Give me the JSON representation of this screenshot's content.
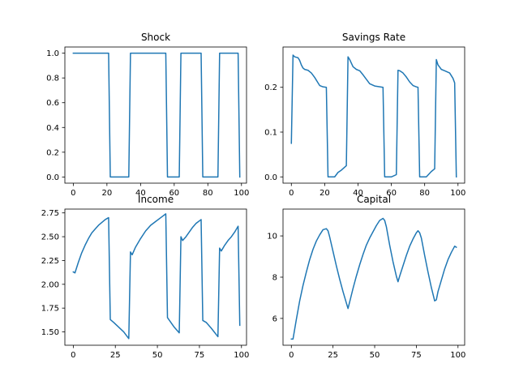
{
  "chart_data": [
    {
      "type": "line",
      "title": "Shock",
      "xlabel": "",
      "ylabel": "",
      "xlim": [
        -5,
        103
      ],
      "ylim": [
        -0.05,
        1.05
      ],
      "xticks": [
        0,
        20,
        40,
        60,
        80,
        100
      ],
      "yticks": [
        0.0,
        0.2,
        0.4,
        0.6,
        0.8,
        1.0
      ],
      "ytick_labels": [
        "0.0",
        "0.2",
        "0.4",
        "0.6",
        "0.8",
        "1.0"
      ],
      "grid": false,
      "color": "#1f77b4",
      "series": [
        {
          "x": [
            0,
            21,
            22,
            33,
            34,
            55,
            56,
            63,
            64,
            76,
            77,
            86,
            87,
            98,
            99
          ],
          "y": [
            1,
            1,
            0,
            0,
            1,
            1,
            0,
            0,
            1,
            1,
            0,
            0,
            1,
            1,
            0
          ]
        }
      ]
    },
    {
      "type": "line",
      "title": "Savings Rate",
      "xlabel": "",
      "ylabel": "",
      "xlim": [
        -5,
        104
      ],
      "ylim": [
        -0.014,
        0.29
      ],
      "xticks": [
        0,
        20,
        40,
        60,
        80,
        100
      ],
      "yticks": [
        0.0,
        0.1,
        0.2
      ],
      "ytick_labels": [
        "0.0",
        "0.1",
        "0.2"
      ],
      "grid": false,
      "color": "#1f77b4",
      "series": [
        {
          "x": [
            0,
            1,
            2,
            3,
            4,
            5,
            6,
            7,
            8,
            10,
            12,
            14,
            16,
            17,
            19,
            21,
            22,
            23,
            26,
            28,
            30,
            33,
            34,
            35,
            37,
            39,
            41,
            43,
            45,
            47,
            50,
            55,
            56,
            57,
            60,
            63,
            64,
            65,
            67,
            69,
            71,
            73,
            75,
            76,
            77,
            78,
            81,
            84,
            86,
            87,
            88,
            90,
            92,
            95,
            97,
            98,
            99
          ],
          "y": [
            0.075,
            0.272,
            0.268,
            0.267,
            0.266,
            0.26,
            0.25,
            0.243,
            0.24,
            0.238,
            0.232,
            0.222,
            0.21,
            0.204,
            0.201,
            0.2,
            0.0,
            0.0,
            0.0,
            0.01,
            0.015,
            0.025,
            0.268,
            0.262,
            0.246,
            0.24,
            0.237,
            0.228,
            0.218,
            0.208,
            0.203,
            0.2,
            0.0,
            0.0,
            0.0,
            0.005,
            0.238,
            0.237,
            0.232,
            0.223,
            0.212,
            0.204,
            0.201,
            0.2,
            0.0,
            0.0,
            0.0,
            0.012,
            0.018,
            0.262,
            0.25,
            0.24,
            0.237,
            0.232,
            0.22,
            0.21,
            0.0
          ]
        }
      ]
    },
    {
      "type": "line",
      "title": "Income",
      "xlabel": "",
      "ylabel": "",
      "xlim": [
        -5,
        103
      ],
      "ylim": [
        1.36,
        2.79
      ],
      "xticks": [
        0,
        25,
        50,
        75,
        100
      ],
      "yticks": [
        1.5,
        1.75,
        2.0,
        2.25,
        2.5,
        2.75
      ],
      "ytick_labels": [
        "1.50",
        "1.75",
        "2.00",
        "2.25",
        "2.50",
        "2.75"
      ],
      "grid": false,
      "color": "#1f77b4",
      "series": [
        {
          "x": [
            0,
            1,
            3,
            5,
            7,
            9,
            11,
            13,
            15,
            17,
            19,
            21,
            22,
            24,
            27,
            30,
            33,
            34,
            35,
            37,
            40,
            43,
            46,
            49,
            52,
            55,
            56,
            58,
            60,
            63,
            64,
            65,
            67,
            69,
            71,
            73,
            76,
            77,
            79,
            82,
            86,
            87,
            88,
            90,
            92,
            94,
            96,
            98,
            99
          ],
          "y": [
            2.13,
            2.12,
            2.23,
            2.33,
            2.41,
            2.48,
            2.54,
            2.58,
            2.62,
            2.65,
            2.68,
            2.7,
            1.63,
            1.6,
            1.55,
            1.5,
            1.43,
            2.34,
            2.31,
            2.39,
            2.48,
            2.56,
            2.62,
            2.66,
            2.7,
            2.74,
            1.65,
            1.6,
            1.55,
            1.49,
            2.5,
            2.46,
            2.5,
            2.55,
            2.6,
            2.64,
            2.68,
            1.62,
            1.6,
            1.54,
            1.45,
            2.38,
            2.35,
            2.41,
            2.46,
            2.5,
            2.55,
            2.61,
            1.57
          ]
        }
      ]
    },
    {
      "type": "line",
      "title": "Capital",
      "xlabel": "",
      "ylabel": "",
      "xlim": [
        -5,
        104
      ],
      "ylim": [
        4.7,
        11.3
      ],
      "xticks": [
        0,
        25,
        50,
        75,
        100
      ],
      "yticks": [
        6,
        8,
        10
      ],
      "ytick_labels": [
        "6",
        "8",
        "10"
      ],
      "grid": false,
      "color": "#1f77b4",
      "series": [
        {
          "x": [
            0,
            1,
            3,
            5,
            7,
            9,
            11,
            13,
            15,
            17,
            19,
            21,
            22,
            23,
            25,
            27,
            29,
            31,
            33,
            34,
            35,
            37,
            39,
            41,
            43,
            45,
            47,
            49,
            51,
            53,
            55,
            56,
            57,
            59,
            61,
            63,
            64,
            65,
            67,
            69,
            71,
            73,
            75,
            76,
            77,
            78,
            80,
            82,
            84,
            86,
            87,
            88,
            90,
            92,
            94,
            96,
            98,
            99
          ],
          "y": [
            5.0,
            5.0,
            5.95,
            6.85,
            7.6,
            8.25,
            8.85,
            9.35,
            9.75,
            10.05,
            10.3,
            10.35,
            10.25,
            9.95,
            9.25,
            8.55,
            7.9,
            7.3,
            6.75,
            6.48,
            6.8,
            7.45,
            8.05,
            8.6,
            9.1,
            9.55,
            9.9,
            10.2,
            10.5,
            10.75,
            10.85,
            10.75,
            10.45,
            9.55,
            8.75,
            8.05,
            7.78,
            8.05,
            8.55,
            9.05,
            9.5,
            9.85,
            10.15,
            10.25,
            10.15,
            9.9,
            9.05,
            8.25,
            7.5,
            6.85,
            6.9,
            7.3,
            7.85,
            8.4,
            8.85,
            9.2,
            9.5,
            9.45
          ]
        }
      ]
    }
  ]
}
